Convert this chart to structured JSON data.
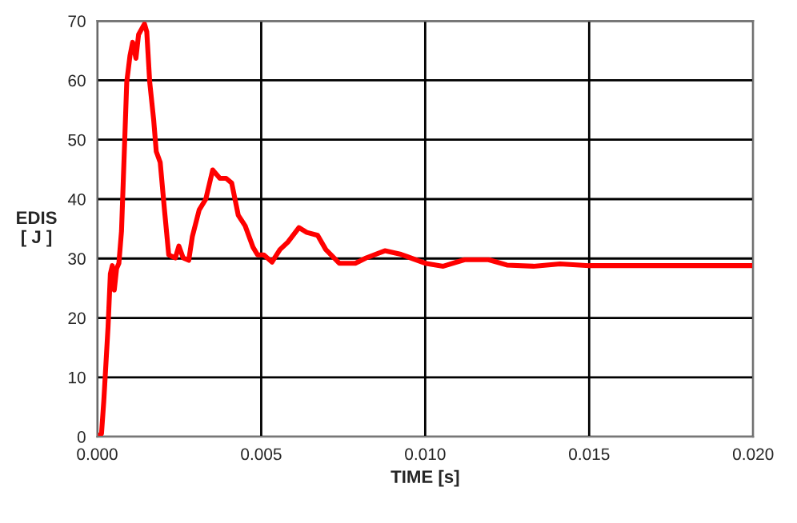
{
  "chart_data": {
    "type": "line",
    "xlabel": "TIME [s]",
    "ylabel": "EDIS\n[ J ]",
    "grid": true,
    "marker": "none",
    "line_style": "solid",
    "xlim": [
      0,
      0.02
    ],
    "ylim": [
      0,
      70
    ],
    "xticks": [
      {
        "value": 0,
        "label": "0.000"
      },
      {
        "value": 0.005,
        "label": "0.005"
      },
      {
        "value": 0.01,
        "label": "0.010"
      },
      {
        "value": 0.015,
        "label": "0.015"
      },
      {
        "value": 0.02,
        "label": "0.020"
      }
    ],
    "yticks": [
      0,
      10,
      20,
      30,
      40,
      50,
      60,
      70
    ],
    "series": [
      {
        "color": "#ff0000",
        "x": [
          0,
          0.00013,
          0.0002,
          0.00033,
          0.0004,
          0.00046,
          0.00052,
          0.00059,
          0.00066,
          0.00074,
          0.00082,
          0.0009,
          0.001,
          0.00108,
          0.00118,
          0.00126,
          0.00144,
          0.00151,
          0.0016,
          0.00172,
          0.0018,
          0.00192,
          0.00205,
          0.00218,
          0.00238,
          0.00249,
          0.00262,
          0.00279,
          0.0029,
          0.00311,
          0.00331,
          0.00352,
          0.00374,
          0.00393,
          0.0041,
          0.0043,
          0.00451,
          0.00475,
          0.00489,
          0.00508,
          0.00533,
          0.00557,
          0.00582,
          0.00615,
          0.00639,
          0.00672,
          0.00697,
          0.00738,
          0.00787,
          0.0082,
          0.00877,
          0.00926,
          0.01,
          0.01055,
          0.0112,
          0.01193,
          0.01249,
          0.0133,
          0.01411,
          0.015,
          0.02
        ],
        "values": [
          0,
          0.5,
          6,
          18.5,
          27.4,
          28.8,
          24.7,
          28.3,
          29.2,
          34.6,
          47.1,
          59.7,
          64.2,
          66.4,
          63.7,
          67.7,
          69.5,
          68.2,
          59.7,
          53.4,
          48,
          46.2,
          38.2,
          30.6,
          30.1,
          32.1,
          30.1,
          29.7,
          33.7,
          38.2,
          40,
          44.9,
          43.5,
          43.5,
          42.7,
          37.3,
          35.5,
          31.9,
          30.6,
          30.6,
          29.4,
          31.5,
          32.8,
          35.2,
          34.4,
          33.9,
          31.5,
          29.2,
          29.2,
          30.1,
          31.3,
          30.7,
          29.2,
          28.7,
          29.8,
          29.8,
          28.9,
          28.7,
          29.1,
          28.8,
          28.8
        ]
      }
    ]
  }
}
